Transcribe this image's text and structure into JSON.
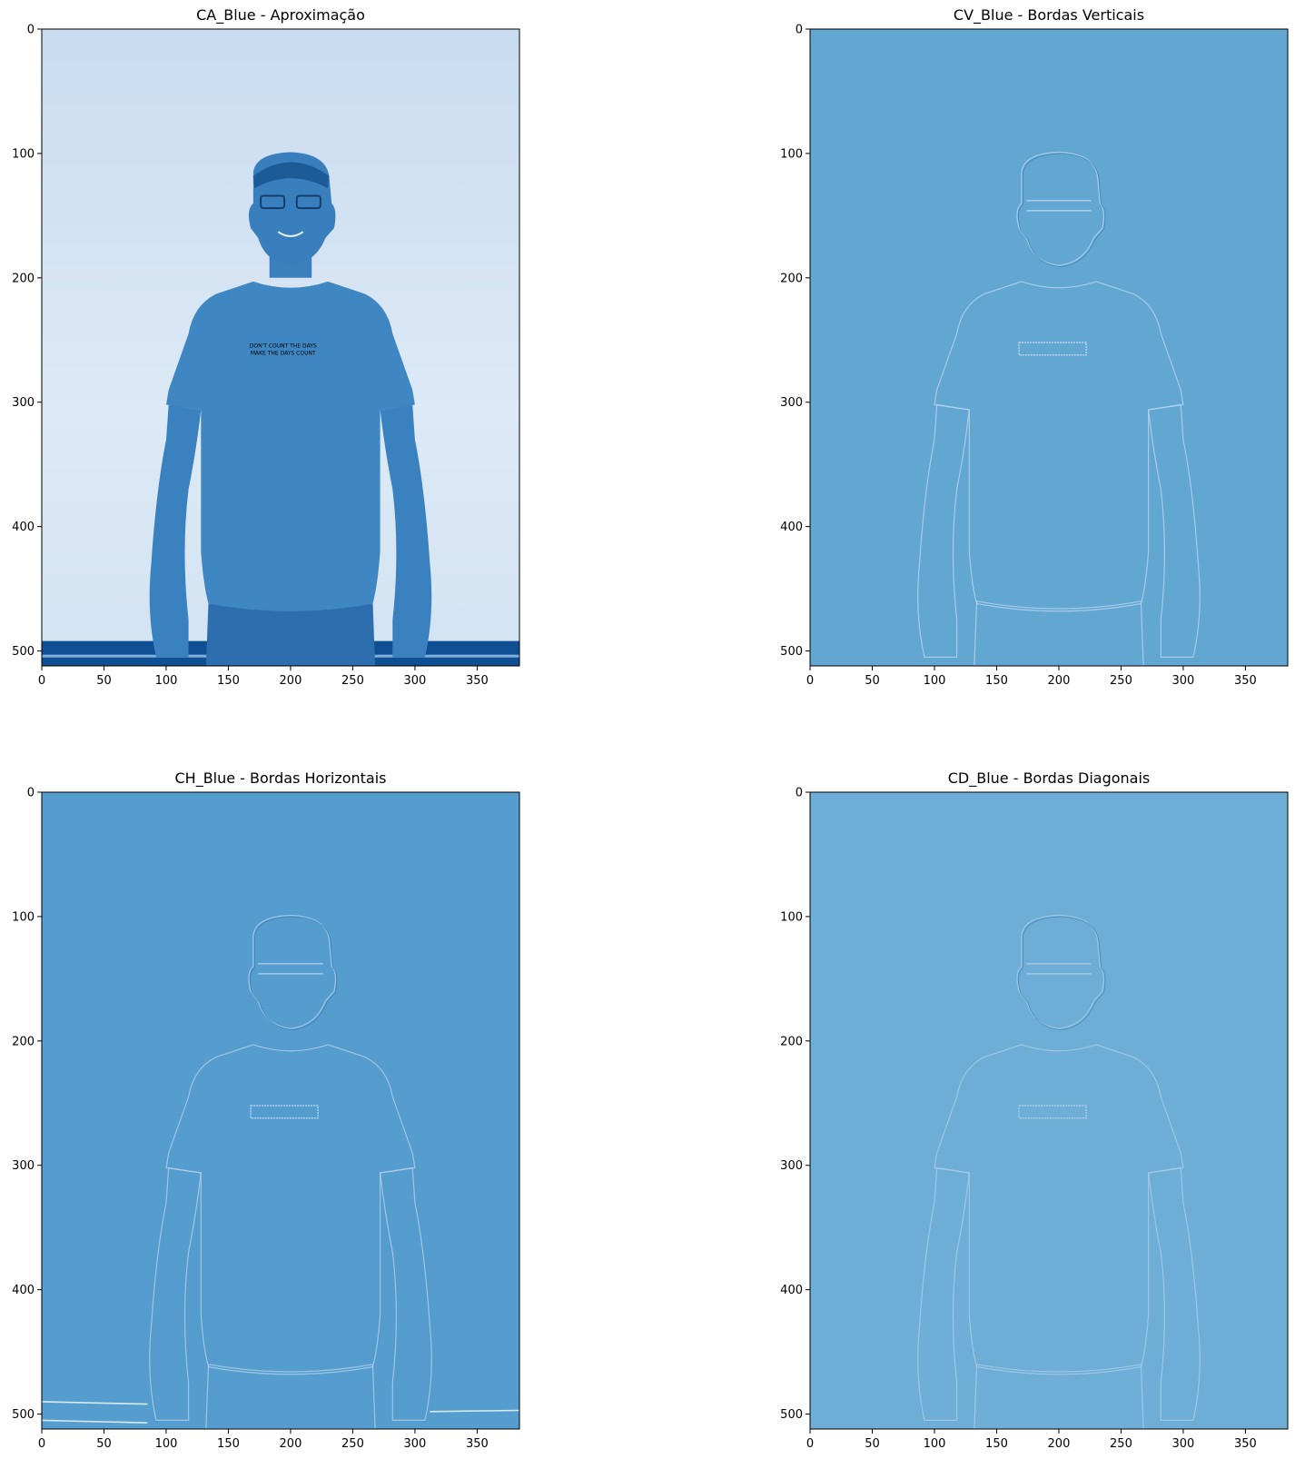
{
  "figure": {
    "panels": [
      {
        "title": "CA_Blue - Aproximação",
        "kind": "approximation",
        "xticks": [
          "0",
          "50",
          "100",
          "150",
          "200",
          "250",
          "300",
          "350"
        ],
        "yticks": [
          "0",
          "100",
          "200",
          "300",
          "400",
          "500"
        ],
        "background": "#dbe8f6",
        "subject_color": "#3f87c2"
      },
      {
        "title": "CV_Blue - Bordas Verticais",
        "kind": "detail",
        "xticks": [
          "0",
          "50",
          "100",
          "150",
          "200",
          "250",
          "300",
          "350"
        ],
        "yticks": [
          "0",
          "100",
          "200",
          "300",
          "400",
          "500"
        ],
        "background": "#62a6d2",
        "edge_color": "#b9d5ec"
      },
      {
        "title": "CH_Blue - Bordas Horizontais",
        "kind": "detail",
        "xticks": [
          "0",
          "50",
          "100",
          "150",
          "200",
          "250",
          "300",
          "350"
        ],
        "yticks": [
          "0",
          "100",
          "200",
          "300",
          "400",
          "500"
        ],
        "background": "#559dce",
        "edge_color": "#b3d0ea"
      },
      {
        "title": "CD_Blue - Bordas Diagonais",
        "kind": "detail",
        "xticks": [
          "0",
          "50",
          "100",
          "150",
          "200",
          "250",
          "300",
          "350"
        ],
        "yticks": [
          "0",
          "100",
          "200",
          "300",
          "400",
          "500"
        ],
        "background": "#6eaed6",
        "edge_color": "#a9cce6"
      }
    ],
    "shirt_text": [
      "DON'T COUNT THE DAYS",
      "MAKE THE DAYS COUNT"
    ]
  }
}
